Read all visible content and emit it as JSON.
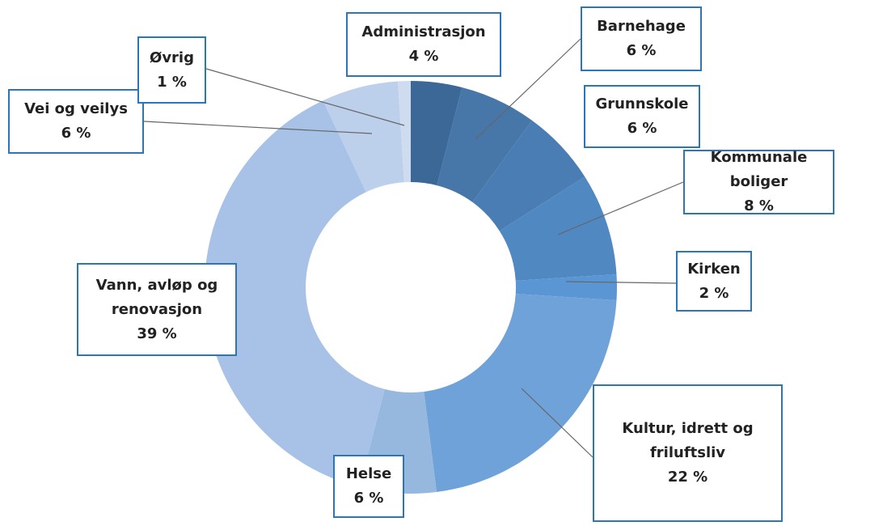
{
  "chart_data": {
    "type": "donut",
    "categories": [
      "Administrasjon",
      "Barnehage",
      "Grunnskole",
      "Kommunale boliger",
      "Kirken",
      "Kultur, idrett og friluftsliv",
      "Helse",
      "Vann, avløp og renovasjon",
      "Vei og veilys",
      "Øvrig"
    ],
    "values": [
      4,
      6,
      6,
      8,
      2,
      22,
      6,
      39,
      6,
      1
    ],
    "value_labels": [
      "4 %",
      "6 %",
      "6 %",
      "8 %",
      "2 %",
      "22 %",
      "6 %",
      "39 %",
      "6 %",
      "1 %"
    ],
    "colors": [
      "#3b6896",
      "#4677a8",
      "#4a7db3",
      "#5088c2",
      "#5b96d4",
      "#6fa2d8",
      "#97b8de",
      "#a7c2e6",
      "#bccfeb",
      "#cfdcef"
    ]
  }
}
